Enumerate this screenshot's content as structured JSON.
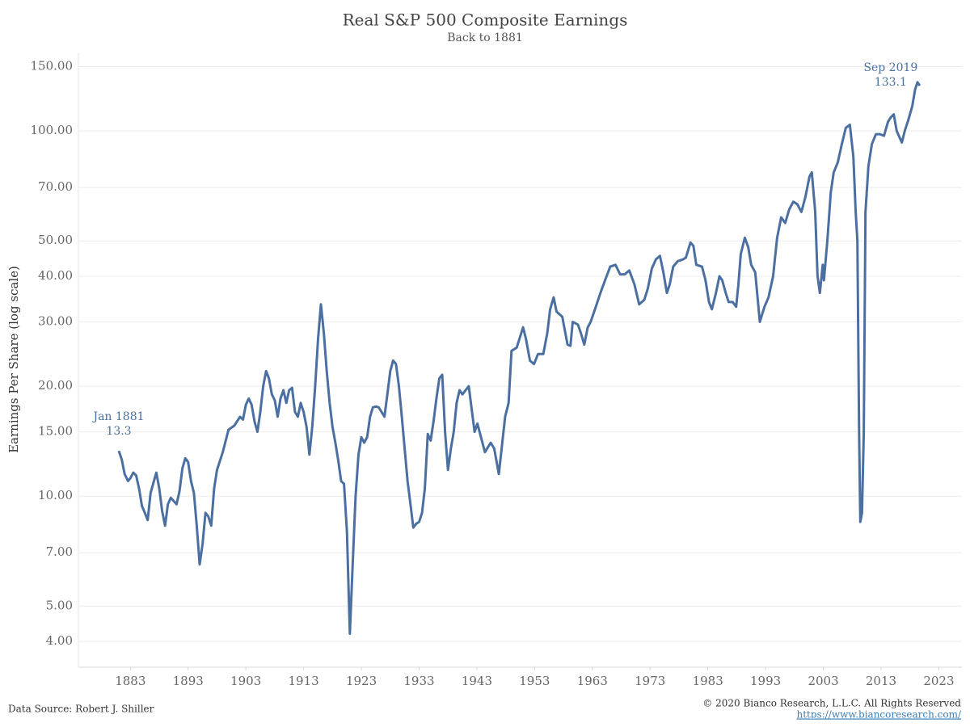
{
  "chart_data": {
    "type": "line",
    "title": "Real S&P 500 Composite Earnings",
    "subtitle": "Back to 1881",
    "y_label": "Earnings Per Share (log scale)",
    "log_y": true,
    "grid": true,
    "color": "#4a6fa0",
    "xlim": [
      1874,
      2027
    ],
    "xticks": [
      1883,
      1893,
      1903,
      1913,
      1923,
      1933,
      1943,
      1953,
      1963,
      1973,
      1983,
      1993,
      2003,
      2013,
      2023
    ],
    "ylim": [
      3.4,
      164
    ],
    "yticks": [
      {
        "value": 4,
        "label": "4.00"
      },
      {
        "value": 5,
        "label": "5.00"
      },
      {
        "value": 7,
        "label": "7.00"
      },
      {
        "value": 10,
        "label": "10.00"
      },
      {
        "value": 15,
        "label": "15.00"
      },
      {
        "value": 20,
        "label": "20.00"
      },
      {
        "value": 30,
        "label": "30.00"
      },
      {
        "value": 40,
        "label": "40.00"
      },
      {
        "value": 50,
        "label": "50.00"
      },
      {
        "value": 70,
        "label": "70.00"
      },
      {
        "value": 100,
        "label": "100.00"
      },
      {
        "value": 150,
        "label": "150.00"
      }
    ],
    "x": [
      1881,
      1881.5,
      1882,
      1882.6,
      1883,
      1883.5,
      1884,
      1884.5,
      1885,
      1885.5,
      1886,
      1886.5,
      1887,
      1887.5,
      1888,
      1888.5,
      1889,
      1889.5,
      1890,
      1890.5,
      1891,
      1891.5,
      1892,
      1892.5,
      1893,
      1893.5,
      1894,
      1894.5,
      1895,
      1895.5,
      1896,
      1896.5,
      1897,
      1897.5,
      1898,
      1899,
      1900,
      1901,
      1902,
      1902.5,
      1903,
      1903.5,
      1904,
      1904.5,
      1905,
      1905.5,
      1906,
      1906.5,
      1907,
      1907.5,
      1908,
      1908.5,
      1909,
      1909.5,
      1910,
      1910.5,
      1911,
      1911.5,
      1912,
      1912.5,
      1913,
      1913.5,
      1914,
      1914.5,
      1915,
      1915.5,
      1916,
      1916.5,
      1917,
      1917.5,
      1918,
      1918.5,
      1919,
      1919.5,
      1920,
      1920.5,
      1921,
      1921.5,
      1922,
      1922.5,
      1923,
      1923.5,
      1924,
      1924.5,
      1925,
      1925.5,
      1926,
      1926.5,
      1927,
      1927.5,
      1928,
      1928.5,
      1929,
      1929.5,
      1930,
      1930.5,
      1931,
      1931.5,
      1932,
      1932.5,
      1933,
      1933.5,
      1934,
      1934.5,
      1935,
      1935.5,
      1936,
      1936.5,
      1937,
      1937.5,
      1938,
      1938.5,
      1939,
      1939.5,
      1940,
      1940.5,
      1941.6,
      1942.6,
      1943.1,
      1944.4,
      1945.4,
      1946,
      1946.8,
      1947.3,
      1947.9,
      1948.5,
      1949,
      1949.9,
      1951,
      1951.5,
      1952.2,
      1952.9,
      1953.6,
      1954.5,
      1955.2,
      1955.7,
      1956.3,
      1956.8,
      1957.8,
      1958.7,
      1959.2,
      1959.6,
      1960.5,
      1961,
      1961.6,
      1962.2,
      1962.7,
      1963.6,
      1964.4,
      1965.2,
      1966.1,
      1967,
      1967.8,
      1968.6,
      1969.4,
      1970.3,
      1971.1,
      1972,
      1972.6,
      1973.3,
      1974,
      1974.7,
      1975.3,
      1975.9,
      1976.4,
      1977,
      1977.8,
      1978.7,
      1979.2,
      1980,
      1980.5,
      1981,
      1982,
      1982.6,
      1983.2,
      1983.7,
      1984.4,
      1985,
      1985.5,
      1986.1,
      1986.6,
      1987.3,
      1987.9,
      1988.3,
      1988.7,
      1989.4,
      1990,
      1990.5,
      1991.2,
      1992,
      1992.8,
      1993.5,
      1994.3,
      1995,
      1995.7,
      1996.4,
      1997.1,
      1997.8,
      1998.5,
      1999.2,
      1999.9,
      2000.6,
      2001,
      2001.6,
      2002,
      2002.4,
      2002.9,
      2003.1,
      2003.7,
      2004.3,
      2004.8,
      2005.5,
      2006.2,
      2006.9,
      2007.6,
      2008.2,
      2008.6,
      2008.9,
      2009.2,
      2009.4,
      2009.7,
      2010,
      2010.3,
      2010.8,
      2011.4,
      2012.1,
      2012.8,
      2013.5,
      2014.2,
      2014.7,
      2015.2,
      2015.7,
      2016.6,
      2017.1,
      2017.7,
      2018.4,
      2018.9,
      2019.3,
      2019.7
    ],
    "values": [
      13.3,
      12.6,
      11.5,
      11.0,
      11.2,
      11.6,
      11.4,
      10.5,
      9.4,
      9.0,
      8.6,
      10.2,
      10.9,
      11.6,
      10.5,
      9.1,
      8.3,
      9.5,
      9.9,
      9.7,
      9.5,
      10.3,
      11.9,
      12.7,
      12.4,
      11.0,
      10.2,
      8.3,
      6.5,
      7.4,
      9.0,
      8.8,
      8.3,
      10.5,
      11.8,
      13.2,
      15.2,
      15.6,
      16.5,
      16.2,
      17.8,
      18.5,
      17.8,
      16.0,
      15.0,
      17.0,
      20.0,
      22.0,
      21.0,
      19.0,
      18.3,
      16.5,
      18.5,
      19.5,
      18.0,
      19.5,
      19.8,
      17.0,
      16.5,
      18.0,
      17.0,
      15.5,
      13.0,
      15.5,
      20.0,
      27.0,
      33.5,
      28.0,
      22.0,
      18.0,
      15.5,
      14.0,
      12.5,
      11.0,
      10.8,
      8.0,
      4.2,
      6.5,
      10.0,
      13.0,
      14.5,
      14.0,
      14.5,
      16.5,
      17.5,
      17.6,
      17.5,
      17.0,
      16.5,
      19.0,
      22.0,
      23.5,
      23.0,
      20.0,
      16.5,
      13.5,
      11.0,
      9.5,
      8.2,
      8.4,
      8.5,
      9.0,
      10.5,
      14.8,
      14.2,
      16.0,
      18.5,
      21.0,
      21.5,
      15.0,
      11.8,
      13.5,
      15.0,
      18.0,
      19.5,
      19.0,
      20.0,
      15.0,
      15.8,
      13.2,
      14.0,
      13.5,
      11.5,
      13.5,
      16.5,
      18.0,
      25.0,
      25.5,
      29.0,
      27.0,
      23.5,
      23.0,
      24.5,
      24.5,
      28.0,
      32.5,
      35.0,
      32.0,
      31.0,
      26.0,
      25.8,
      30.0,
      29.5,
      28.0,
      26.0,
      29.0,
      30.0,
      33.0,
      36.0,
      39.0,
      42.5,
      43.0,
      40.5,
      40.5,
      41.5,
      38.0,
      33.5,
      34.5,
      37.0,
      42.0,
      44.5,
      45.5,
      41.0,
      36.0,
      38.0,
      42.5,
      44.0,
      44.5,
      45.0,
      49.5,
      48.5,
      43.0,
      42.5,
      39.0,
      34.0,
      32.5,
      36.0,
      40.0,
      39.0,
      36.0,
      34.0,
      34.0,
      33.0,
      38.0,
      46.0,
      51.0,
      48.0,
      43.0,
      41.0,
      30.0,
      33.0,
      35.0,
      40.0,
      51.0,
      58.0,
      56.0,
      61.0,
      64.0,
      63.0,
      60.0,
      66.0,
      75.0,
      77.0,
      60.0,
      40.0,
      36.0,
      43.0,
      39.0,
      50.0,
      68.0,
      77.0,
      82.0,
      92.0,
      102.0,
      104.0,
      85.0,
      60.0,
      50.0,
      15.0,
      8.5,
      9.0,
      15.0,
      60.0,
      80.0,
      92.0,
      98.0,
      98.0,
      97.0,
      106.0,
      109.0,
      111.0,
      100.0,
      93.0,
      100.0,
      107.0,
      117.0,
      130.0,
      136.0,
      133.1
    ],
    "annotations": [
      {
        "date": "Jan 1881",
        "value": 13.3
      },
      {
        "date": "Sep 2019",
        "value": 133.1
      }
    ],
    "source": "Data Source: Robert J. Shiller",
    "copyright": "© 2020 Bianco Research, L.L.C. All Rights Reserved",
    "url": "https://www.biancoresearch.com/"
  }
}
